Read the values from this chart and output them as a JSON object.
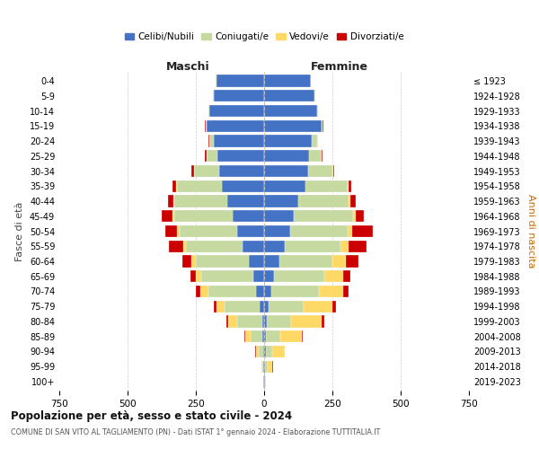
{
  "age_groups": [
    "0-4",
    "5-9",
    "10-14",
    "15-19",
    "20-24",
    "25-29",
    "30-34",
    "35-39",
    "40-44",
    "45-49",
    "50-54",
    "55-59",
    "60-64",
    "65-69",
    "70-74",
    "75-79",
    "80-84",
    "85-89",
    "90-94",
    "95-99",
    "100+"
  ],
  "birth_years": [
    "2019-2023",
    "2014-2018",
    "2009-2013",
    "2004-2008",
    "1999-2003",
    "1994-1998",
    "1989-1993",
    "1984-1988",
    "1979-1983",
    "1974-1978",
    "1969-1973",
    "1964-1968",
    "1959-1963",
    "1954-1958",
    "1949-1953",
    "1944-1948",
    "1939-1943",
    "1934-1938",
    "1929-1933",
    "1924-1928",
    "≤ 1923"
  ],
  "males": {
    "celibi": [
      175,
      185,
      200,
      210,
      185,
      170,
      165,
      155,
      135,
      115,
      100,
      80,
      55,
      40,
      30,
      15,
      8,
      5,
      3,
      2,
      2
    ],
    "coniugati": [
      2,
      2,
      3,
      5,
      15,
      40,
      90,
      165,
      195,
      215,
      210,
      205,
      195,
      190,
      175,
      130,
      90,
      45,
      18,
      5,
      1
    ],
    "vedovi": [
      0,
      0,
      0,
      0,
      1,
      1,
      2,
      2,
      2,
      5,
      8,
      10,
      15,
      20,
      30,
      30,
      35,
      20,
      10,
      2,
      0
    ],
    "divorziati": [
      0,
      0,
      0,
      1,
      2,
      5,
      8,
      15,
      20,
      40,
      45,
      55,
      35,
      20,
      15,
      10,
      5,
      2,
      1,
      0,
      0
    ]
  },
  "females": {
    "nubili": [
      170,
      185,
      195,
      210,
      175,
      165,
      160,
      150,
      125,
      110,
      95,
      75,
      55,
      35,
      25,
      15,
      10,
      8,
      5,
      3,
      2
    ],
    "coniugate": [
      2,
      2,
      3,
      5,
      20,
      45,
      90,
      155,
      185,
      215,
      210,
      205,
      195,
      185,
      175,
      130,
      90,
      50,
      25,
      10,
      2
    ],
    "vedove": [
      0,
      0,
      0,
      0,
      1,
      1,
      2,
      3,
      5,
      10,
      18,
      30,
      50,
      70,
      90,
      105,
      110,
      80,
      45,
      18,
      2
    ],
    "divorziate": [
      0,
      0,
      0,
      1,
      2,
      3,
      5,
      10,
      20,
      30,
      75,
      65,
      45,
      25,
      18,
      12,
      10,
      5,
      2,
      1,
      0
    ]
  },
  "colors": {
    "celibi": "#4472C4",
    "coniugati": "#C5D9A0",
    "vedovi": "#FFD966",
    "divorziati": "#CC0000"
  },
  "legend_labels": [
    "Celibi/Nubili",
    "Coniugati/e",
    "Vedovi/e",
    "Divorziati/e"
  ],
  "title": "Popolazione per età, sesso e stato civile - 2024",
  "subtitle": "COMUNE DI SAN VITO AL TAGLIAMENTO (PN) - Dati ISTAT 1° gennaio 2024 - Elaborazione TUTTITALIA.IT",
  "xlabel_left": "Maschi",
  "xlabel_right": "Femmine",
  "ylabel_left": "Fasce di età",
  "ylabel_right": "Anni di nascita",
  "xlim": 750,
  "background_color": "#ffffff",
  "grid_color": "#cccccc"
}
